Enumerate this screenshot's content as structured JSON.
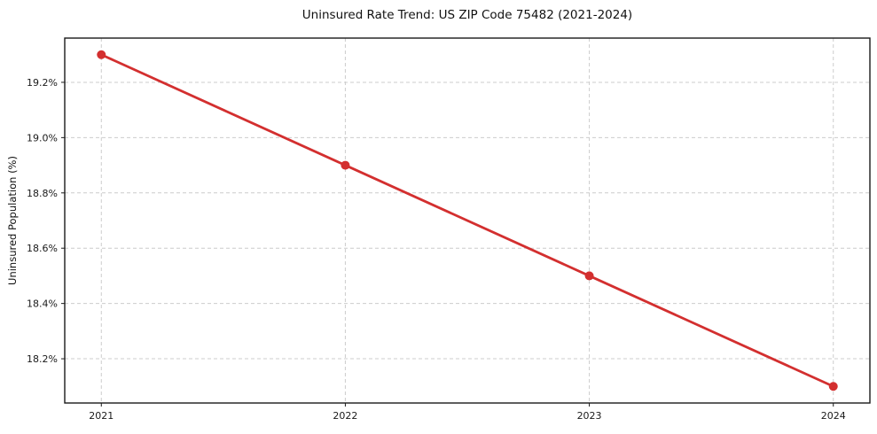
{
  "chart_data": {
    "type": "line",
    "title": "Uninsured Rate Trend: US ZIP Code 75482 (2021-2024)",
    "xlabel": "",
    "ylabel": "Uninsured Population (%)",
    "x": [
      2021,
      2022,
      2023,
      2024
    ],
    "xtick_labels": [
      "2021",
      "2022",
      "2023",
      "2024"
    ],
    "values": [
      19.3,
      18.9,
      18.5,
      18.1
    ],
    "yticks": [
      18.2,
      18.4,
      18.6,
      18.8,
      19.0,
      19.2
    ],
    "ytick_labels": [
      "18.2%",
      "18.4%",
      "18.6%",
      "18.8%",
      "19.0%",
      "19.2%"
    ],
    "xlim": [
      2020.85,
      2024.15
    ],
    "ylim": [
      18.04,
      19.36
    ],
    "grid": true,
    "grid_style": "dashed",
    "legend_position": "none",
    "line_color": "#d32f2f",
    "marker": "circle",
    "grid_color": "#cccccc",
    "spine_color": "#1a1a1a",
    "text_color": "#1a1a1a",
    "background_color": "#ffffff"
  }
}
